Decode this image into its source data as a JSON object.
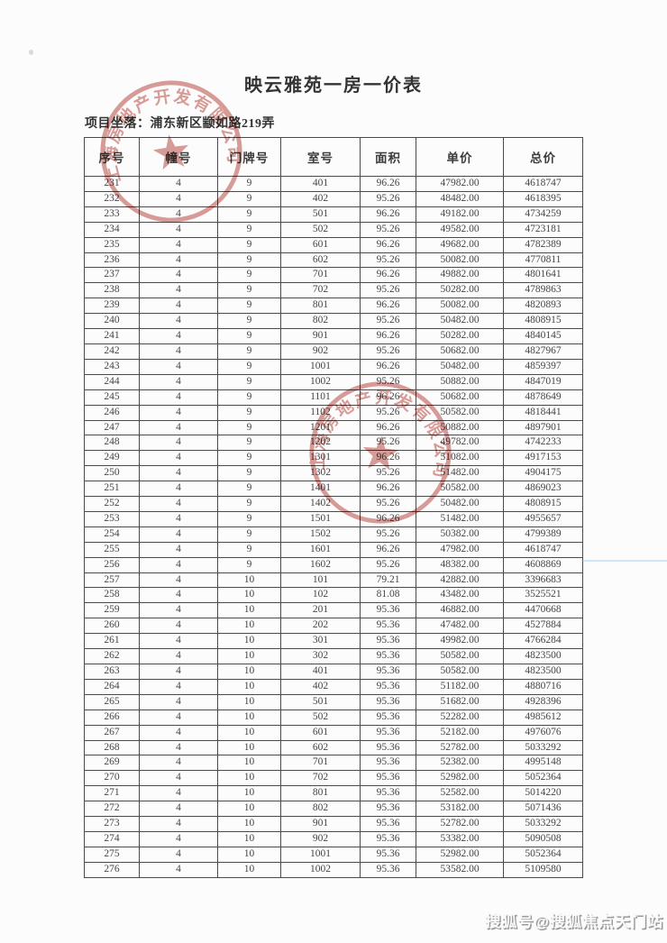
{
  "title": "映云雅苑一房一价表",
  "location": {
    "label": "项目坐落：",
    "value": "浦东新区颛如路219弄"
  },
  "table": {
    "headers": [
      "序号",
      "幢号",
      "门牌号",
      "室号",
      "面积",
      "单价",
      "总价"
    ],
    "rows": [
      [
        "231",
        "4",
        "9",
        "401",
        "96.26",
        "47982.00",
        "4618747"
      ],
      [
        "232",
        "4",
        "9",
        "402",
        "95.26",
        "48482.00",
        "4618395"
      ],
      [
        "233",
        "4",
        "9",
        "501",
        "96.26",
        "49182.00",
        "4734259"
      ],
      [
        "234",
        "4",
        "9",
        "502",
        "95.26",
        "49582.00",
        "4723181"
      ],
      [
        "235",
        "4",
        "9",
        "601",
        "96.26",
        "49682.00",
        "4782389"
      ],
      [
        "236",
        "4",
        "9",
        "602",
        "95.26",
        "50082.00",
        "4770811"
      ],
      [
        "237",
        "4",
        "9",
        "701",
        "96.26",
        "49882.00",
        "4801641"
      ],
      [
        "238",
        "4",
        "9",
        "702",
        "95.26",
        "50282.00",
        "4789863"
      ],
      [
        "239",
        "4",
        "9",
        "801",
        "96.26",
        "50082.00",
        "4820893"
      ],
      [
        "240",
        "4",
        "9",
        "802",
        "95.26",
        "50482.00",
        "4808915"
      ],
      [
        "241",
        "4",
        "9",
        "901",
        "96.26",
        "50282.00",
        "4840145"
      ],
      [
        "242",
        "4",
        "9",
        "902",
        "95.26",
        "50682.00",
        "4827967"
      ],
      [
        "243",
        "4",
        "9",
        "1001",
        "96.26",
        "50482.00",
        "4859397"
      ],
      [
        "244",
        "4",
        "9",
        "1002",
        "95.26",
        "50882.00",
        "4847019"
      ],
      [
        "245",
        "4",
        "9",
        "1101",
        "96.26",
        "50682.00",
        "4878649"
      ],
      [
        "246",
        "4",
        "9",
        "1102",
        "95.26",
        "50582.00",
        "4818441"
      ],
      [
        "247",
        "4",
        "9",
        "1201",
        "96.26",
        "50882.00",
        "4897901"
      ],
      [
        "248",
        "4",
        "9",
        "1202",
        "95.26",
        "49782.00",
        "4742233"
      ],
      [
        "249",
        "4",
        "9",
        "1301",
        "96.26",
        "51082.00",
        "4917153"
      ],
      [
        "250",
        "4",
        "9",
        "1302",
        "95.26",
        "51482.00",
        "4904175"
      ],
      [
        "251",
        "4",
        "9",
        "1401",
        "96.26",
        "50582.00",
        "4869023"
      ],
      [
        "252",
        "4",
        "9",
        "1402",
        "95.26",
        "50482.00",
        "4808915"
      ],
      [
        "253",
        "4",
        "9",
        "1501",
        "96.26",
        "51482.00",
        "4955657"
      ],
      [
        "254",
        "4",
        "9",
        "1502",
        "95.26",
        "50382.00",
        "4799389"
      ],
      [
        "255",
        "4",
        "9",
        "1601",
        "96.26",
        "47982.00",
        "4618747"
      ],
      [
        "256",
        "4",
        "9",
        "1602",
        "95.26",
        "48382.00",
        "4608869"
      ],
      [
        "257",
        "4",
        "10",
        "101",
        "79.21",
        "42882.00",
        "3396683"
      ],
      [
        "258",
        "4",
        "10",
        "102",
        "81.08",
        "43482.00",
        "3525521"
      ],
      [
        "259",
        "4",
        "10",
        "201",
        "95.36",
        "46882.00",
        "4470668"
      ],
      [
        "260",
        "4",
        "10",
        "202",
        "95.36",
        "47482.00",
        "4527884"
      ],
      [
        "261",
        "4",
        "10",
        "301",
        "95.36",
        "49982.00",
        "4766284"
      ],
      [
        "262",
        "4",
        "10",
        "302",
        "95.36",
        "50582.00",
        "4823500"
      ],
      [
        "263",
        "4",
        "10",
        "401",
        "95.36",
        "50582.00",
        "4823500"
      ],
      [
        "264",
        "4",
        "10",
        "402",
        "95.36",
        "51182.00",
        "4880716"
      ],
      [
        "265",
        "4",
        "10",
        "501",
        "95.36",
        "51682.00",
        "4928396"
      ],
      [
        "266",
        "4",
        "10",
        "502",
        "95.36",
        "52282.00",
        "4985612"
      ],
      [
        "267",
        "4",
        "10",
        "601",
        "95.36",
        "52182.00",
        "4976076"
      ],
      [
        "268",
        "4",
        "10",
        "602",
        "95.36",
        "52782.00",
        "5033292"
      ],
      [
        "269",
        "4",
        "10",
        "701",
        "95.36",
        "52382.00",
        "4995148"
      ],
      [
        "270",
        "4",
        "10",
        "702",
        "95.36",
        "52982.00",
        "5052364"
      ],
      [
        "271",
        "4",
        "10",
        "801",
        "95.36",
        "52582.00",
        "5014220"
      ],
      [
        "272",
        "4",
        "10",
        "802",
        "95.36",
        "53182.00",
        "5071436"
      ],
      [
        "273",
        "4",
        "10",
        "901",
        "95.36",
        "52782.00",
        "5033292"
      ],
      [
        "274",
        "4",
        "10",
        "902",
        "95.36",
        "53382.00",
        "5090508"
      ],
      [
        "275",
        "4",
        "10",
        "1001",
        "95.36",
        "52982.00",
        "5052364"
      ],
      [
        "276",
        "4",
        "10",
        "1002",
        "95.36",
        "53582.00",
        "5109580"
      ]
    ]
  },
  "seal": {
    "arc_text": "上海房地产开发有限公司",
    "color": "#b8423a"
  },
  "watermark": {
    "text": "搜狐号@搜狐焦点天门站"
  }
}
